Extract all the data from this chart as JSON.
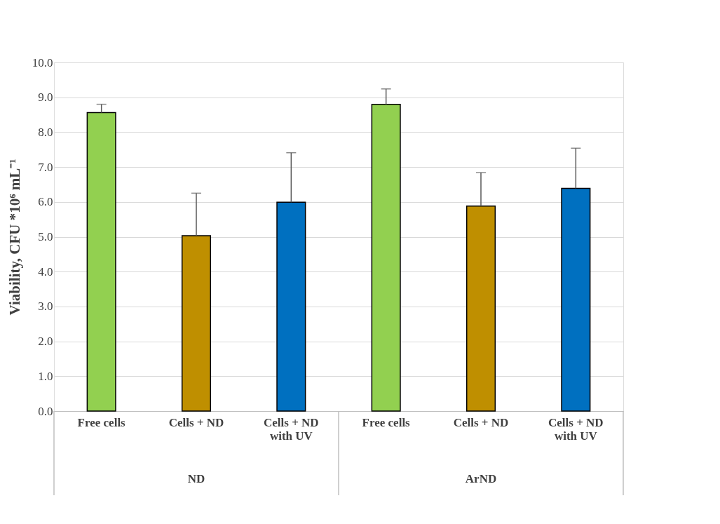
{
  "chart_data": {
    "type": "bar",
    "ylabel": "Viability, CFU *10⁶ mL⁻¹",
    "categories": [
      "Free cells",
      "Cells + ND",
      "Cells + ND\nwith UV",
      "Free cells",
      "Cells + ND",
      "Cells + ND\nwith UV"
    ],
    "values": [
      8.56,
      5.03,
      5.99,
      8.8,
      5.88,
      6.39
    ],
    "colors": [
      "#92d050",
      "#bf8f00",
      "#0070c0",
      "#92d050",
      "#bf8f00",
      "#0070c0"
    ],
    "errors": [
      [
        8.56,
        8.8
      ],
      [
        5.03,
        6.25
      ],
      [
        5.99,
        7.41
      ],
      [
        8.8,
        9.24
      ],
      [
        5.88,
        6.84
      ],
      [
        6.39,
        7.54
      ]
    ],
    "annotations": [
      "ND",
      "ArND"
    ],
    "ylim": [
      0,
      10
    ],
    "yticks": [
      {
        "value": 0,
        "label": "0.0"
      },
      {
        "value": 1,
        "label": "1.0"
      },
      {
        "value": 2,
        "label": "2.0"
      },
      {
        "value": 3,
        "label": "3.0"
      },
      {
        "value": 4,
        "label": "4.0"
      },
      {
        "value": 5,
        "label": "5.0"
      },
      {
        "value": 6,
        "label": "6.0"
      },
      {
        "value": 7,
        "label": "7.0"
      },
      {
        "value": 8,
        "label": "8.0"
      },
      {
        "value": 9,
        "label": "9.0"
      },
      {
        "value": 10,
        "label": "10.0"
      }
    ],
    "grid": "y"
  }
}
